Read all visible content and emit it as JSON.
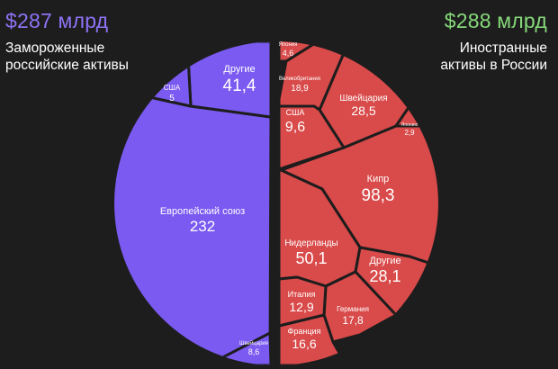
{
  "colors": {
    "left_fill": "#7a5af0",
    "right_fill": "#d94a4a",
    "left_total": "#8e72f5",
    "right_total": "#86d97a",
    "divider": "#1d1d1d",
    "label": "#ffffff"
  },
  "left_header": {
    "total": "$287 млрд",
    "subtitle_line1": "Замороженные",
    "subtitle_line2": "российские активы"
  },
  "right_header": {
    "total": "$288 млрд",
    "subtitle_line1": "Иностранные",
    "subtitle_line2": "активы в России"
  },
  "chart_data": {
    "type": "voronoi treemap (split circle)",
    "groups": [
      {
        "name": "Замороженные российские активы",
        "total": 287,
        "unit": "млрд $",
        "cells": [
          {
            "label": "Европейский союз",
            "value": 232
          },
          {
            "label": "Другие",
            "value": 41.4
          },
          {
            "label": "Швейцария",
            "value": 8.6
          },
          {
            "label": "США",
            "value": 5
          }
        ]
      },
      {
        "name": "Иностранные активы в России",
        "total": 288,
        "unit": "млрд $",
        "cells": [
          {
            "label": "Кипр",
            "value": 98.3
          },
          {
            "label": "Нидерланды",
            "value": 50.1
          },
          {
            "label": "Швейцария",
            "value": 28.5
          },
          {
            "label": "Другие",
            "value": 28.1
          },
          {
            "label": "Великобритания",
            "value": 18.9
          },
          {
            "label": "Германия",
            "value": 17.8
          },
          {
            "label": "Франция",
            "value": 16.6
          },
          {
            "label": "Италия",
            "value": 12.9
          },
          {
            "label": "США",
            "value": 9.6
          },
          {
            "label": "Япония",
            "value": 4.6
          },
          {
            "label": "Японию",
            "value": 2.9
          }
        ]
      }
    ]
  }
}
